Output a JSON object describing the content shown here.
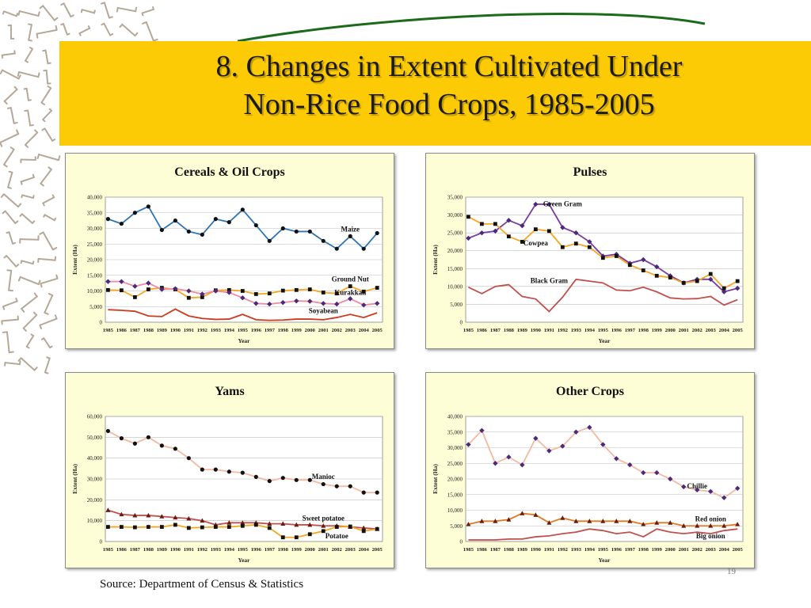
{
  "slide": {
    "title_line1": "8. Changes in Extent Cultivated Under",
    "title_line2": "Non-Rice Food Crops, 1985-2005",
    "source": "Source: Department of Census & Statistics",
    "page_number": "19",
    "colors": {
      "band": "#fccb06",
      "panel_bg": "#fefed6",
      "pattern": "#b5a898",
      "arc": "#1b6b1b"
    }
  },
  "chart_data": [
    {
      "type": "line",
      "title": "Cereals & Oil Crops",
      "xlabel": "Year",
      "ylabel": "Extent (Ha)",
      "ylim": [
        0,
        40000
      ],
      "yticks": [
        0,
        5000,
        10000,
        15000,
        20000,
        25000,
        30000,
        35000,
        40000
      ],
      "x": [
        1985,
        1986,
        1987,
        1988,
        1989,
        1990,
        1991,
        1992,
        1993,
        1994,
        1995,
        1996,
        1997,
        1998,
        1999,
        2000,
        2001,
        2002,
        2003,
        2004,
        2005
      ],
      "series": [
        {
          "name": "Maize",
          "color": "#2e75b6",
          "marker": "circle",
          "label_anchor": {
            "x": 2003,
            "y": 29000
          },
          "values": [
            33000,
            31500,
            35000,
            37000,
            29500,
            32500,
            29000,
            28000,
            33000,
            32000,
            36000,
            31000,
            26000,
            30000,
            29000,
            29000,
            26000,
            23500,
            27500,
            23500,
            28500
          ]
        },
        {
          "name": "Ground Nut",
          "color": "#f5a623",
          "marker": "square",
          "label_anchor": {
            "x": 2003,
            "y": 13000
          },
          "values": [
            10300,
            10200,
            8000,
            10500,
            11000,
            10500,
            7800,
            8000,
            10200,
            10300,
            10000,
            9000,
            9200,
            10100,
            10300,
            10500,
            9500,
            9200,
            11500,
            9800,
            11000
          ]
        },
        {
          "name": "Kurakkan",
          "color": "#ef8aa0",
          "marker": "diamond",
          "label_anchor": {
            "x": 2003,
            "y": 8700
          },
          "values": [
            13000,
            13000,
            11500,
            12500,
            10500,
            10700,
            10000,
            9000,
            10000,
            9500,
            7800,
            6000,
            5800,
            6300,
            6800,
            6700,
            6000,
            5800,
            7500,
            5500,
            6000
          ]
        },
        {
          "name": "Soyabean",
          "color": "#cc3b1f",
          "marker": "none",
          "label_anchor": {
            "x": 2001,
            "y": 2900
          },
          "values": [
            4000,
            3800,
            3500,
            2000,
            1800,
            4200,
            2000,
            1200,
            900,
            1000,
            2500,
            800,
            600,
            700,
            1000,
            1000,
            800,
            1500,
            2500,
            1500,
            3000
          ]
        }
      ]
    },
    {
      "type": "line",
      "title": "Pulses",
      "xlabel": "Year",
      "ylabel": "Extent (Ha)",
      "ylim": [
        0,
        35000
      ],
      "yticks": [
        0,
        5000,
        10000,
        15000,
        20000,
        25000,
        30000,
        35000
      ],
      "x": [
        1985,
        1986,
        1987,
        1988,
        1989,
        1990,
        1991,
        1992,
        1993,
        1994,
        1995,
        1996,
        1997,
        1998,
        1999,
        2000,
        2001,
        2002,
        2003,
        2004,
        2005
      ],
      "series": [
        {
          "name": "Green Gram",
          "color": "#7a3ba0",
          "marker": "diamond",
          "label_anchor": {
            "x": 1992,
            "y": 32500
          },
          "values": [
            23500,
            25000,
            25500,
            28500,
            27000,
            33000,
            33000,
            26500,
            25000,
            22500,
            18500,
            19000,
            16500,
            17500,
            15500,
            13000,
            11000,
            12000,
            12000,
            8500,
            9500
          ]
        },
        {
          "name": "Cowpea",
          "color": "#f5a623",
          "marker": "square",
          "label_anchor": {
            "x": 1990,
            "y": 21500
          },
          "values": [
            29500,
            27500,
            27500,
            24000,
            22500,
            26000,
            25500,
            21000,
            22000,
            21000,
            18000,
            18500,
            16000,
            14500,
            13000,
            12500,
            11000,
            11500,
            13500,
            9500,
            11500
          ]
        },
        {
          "name": "Black Gram",
          "color": "#c0504d",
          "marker": "none",
          "label_anchor": {
            "x": 1991,
            "y": 11000
          },
          "values": [
            9800,
            8000,
            10000,
            10500,
            7200,
            6500,
            3000,
            7000,
            12000,
            11500,
            11000,
            9000,
            8800,
            9800,
            8500,
            6800,
            6500,
            6600,
            7200,
            4800,
            6300
          ]
        }
      ]
    },
    {
      "type": "line",
      "title": "Yams",
      "xlabel": "Year",
      "ylabel": "Extent (Ha)",
      "ylim": [
        0,
        60000
      ],
      "yticks": [
        0,
        10000,
        20000,
        30000,
        40000,
        50000,
        60000
      ],
      "x": [
        1985,
        1986,
        1987,
        1988,
        1989,
        1990,
        1991,
        1992,
        1993,
        1994,
        1995,
        1996,
        1997,
        1998,
        1999,
        2000,
        2001,
        2002,
        2003,
        2004,
        2005
      ],
      "series": [
        {
          "name": "Manioc",
          "color": "#f5b8a0",
          "marker": "circle",
          "label_anchor": {
            "x": 2001,
            "y": 30000
          },
          "values": [
            53000,
            49500,
            47000,
            50000,
            46000,
            44500,
            40000,
            34500,
            34500,
            33500,
            33000,
            31000,
            29000,
            30500,
            29500,
            29500,
            27500,
            26500,
            26500,
            23500,
            23500
          ]
        },
        {
          "name": "Sweet potatoe",
          "color": "#c0504d",
          "marker": "triangle",
          "label_anchor": {
            "x": 2001,
            "y": 10000
          },
          "values": [
            15000,
            13000,
            12500,
            12500,
            12000,
            11500,
            11000,
            10000,
            8000,
            9000,
            9000,
            9000,
            8500,
            8500,
            8000,
            8000,
            7500,
            7500,
            7000,
            6500,
            6000
          ]
        },
        {
          "name": "Potatoe",
          "color": "#f5a623",
          "marker": "square",
          "label_anchor": {
            "x": 2002,
            "y": 1500
          },
          "values": [
            7000,
            7000,
            6800,
            7000,
            7000,
            8000,
            6500,
            6800,
            7000,
            7000,
            7500,
            8000,
            6500,
            2000,
            2000,
            3500,
            5000,
            7000,
            7200,
            5000,
            6000
          ]
        }
      ]
    },
    {
      "type": "line",
      "title": "Other Crops",
      "xlabel": "Year",
      "ylabel": "Extent (Ha)",
      "ylim": [
        0,
        40000
      ],
      "yticks": [
        0,
        5000,
        10000,
        15000,
        20000,
        25000,
        30000,
        35000,
        40000
      ],
      "x": [
        1985,
        1986,
        1987,
        1988,
        1989,
        1990,
        1991,
        1992,
        1993,
        1994,
        1995,
        1996,
        1997,
        1998,
        1999,
        2000,
        2001,
        2002,
        2003,
        2004,
        2005
      ],
      "series": [
        {
          "name": "Chillie",
          "color": "#f5b8a0",
          "marker": "diamond",
          "label_anchor": {
            "x": 2002,
            "y": 17000
          },
          "values": [
            31000,
            35500,
            25000,
            27000,
            24500,
            33000,
            29000,
            30500,
            35000,
            36500,
            31000,
            26500,
            24500,
            22000,
            22000,
            20000,
            17500,
            16500,
            16000,
            14000,
            17000
          ]
        },
        {
          "name": "Red onion",
          "color": "#e07a20",
          "marker": "triangle",
          "label_anchor": {
            "x": 2003,
            "y": 6500
          },
          "values": [
            5500,
            6500,
            6500,
            7000,
            9000,
            8500,
            6000,
            7500,
            6500,
            6500,
            6500,
            6500,
            6500,
            5500,
            6000,
            6000,
            5000,
            5000,
            5000,
            5000,
            5500
          ]
        },
        {
          "name": "Big onion",
          "color": "#c0504d",
          "marker": "none",
          "label_anchor": {
            "x": 2003,
            "y": 1000
          },
          "values": [
            500,
            500,
            500,
            800,
            800,
            1500,
            1800,
            2500,
            3000,
            4000,
            3500,
            2500,
            3000,
            1500,
            4000,
            3000,
            2500,
            3000,
            2500,
            3500,
            4000
          ]
        }
      ]
    }
  ]
}
